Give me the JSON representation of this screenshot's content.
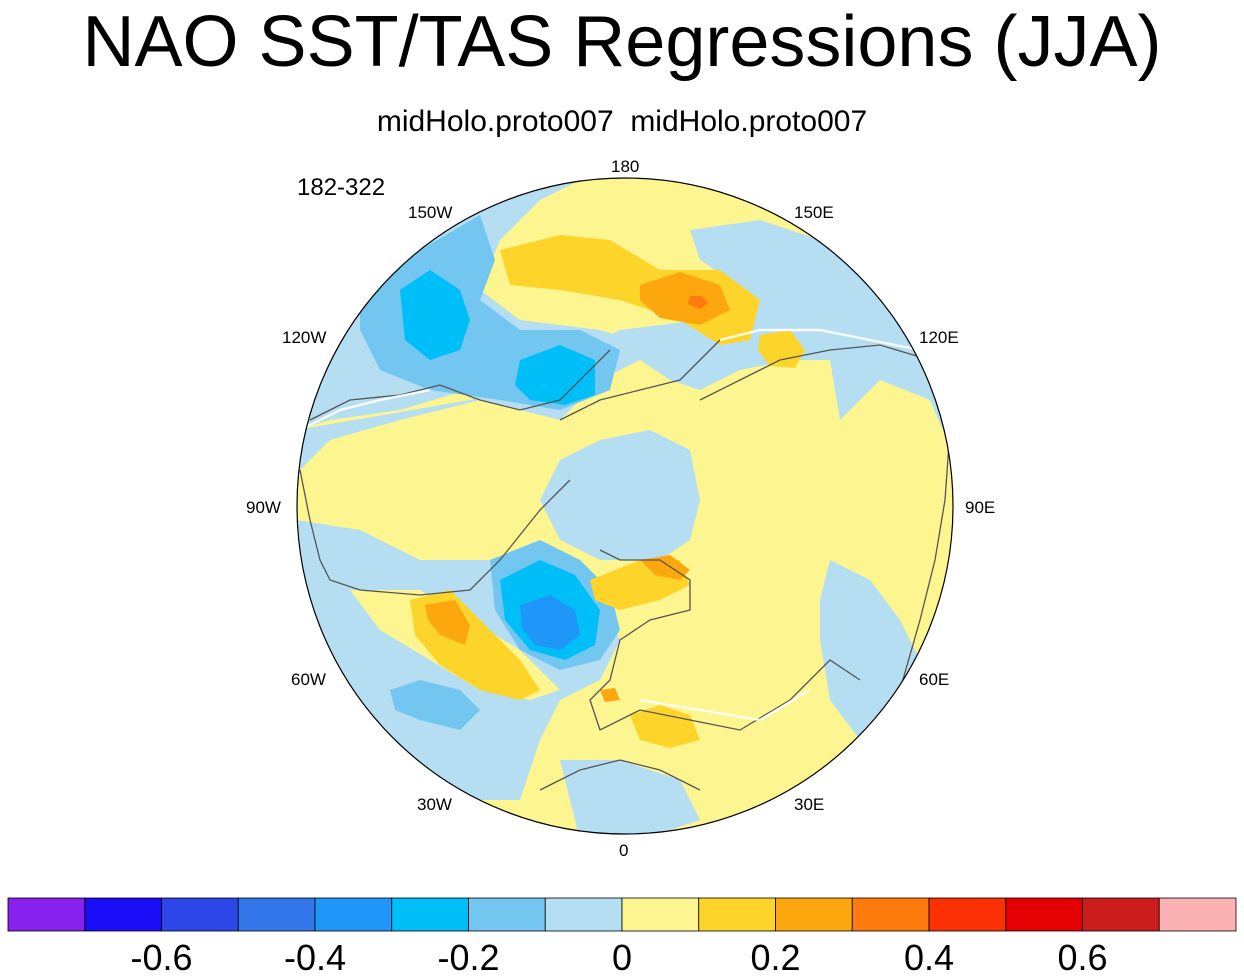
{
  "title": "NAO SST/TAS Regressions (JJA)",
  "subtitle": "midHolo.proto007  midHolo.proto007",
  "period_label": "182-322",
  "longitude_labels": {
    "lon_180": "180",
    "lon_150E": "150E",
    "lon_120E": "120E",
    "lon_90E": "90E",
    "lon_60E": "60E",
    "lon_30E": "30E",
    "lon_0": "0",
    "lon_30W": "30W",
    "lon_60W": "60W",
    "lon_90W": "90W",
    "lon_120W": "120W",
    "lon_150W": "150W"
  },
  "colorbar": {
    "colors": [
      "#8722ee",
      "#1a0cf7",
      "#2d46e8",
      "#3377ea",
      "#1e97f8",
      "#00bef8",
      "#72c6f0",
      "#b5def2",
      "#fdf58f",
      "#fdd42a",
      "#fca70d",
      "#fd7a0c",
      "#fb3005",
      "#e40003",
      "#cc1d1d",
      "#fcb2b3"
    ],
    "tick_labels": [
      "-0.6",
      "-0.4",
      "-0.2",
      "0",
      "0.2",
      "0.4",
      "0.6"
    ]
  },
  "colors": {
    "land_outline": "#555555",
    "coast_white": "#ffffff"
  }
}
